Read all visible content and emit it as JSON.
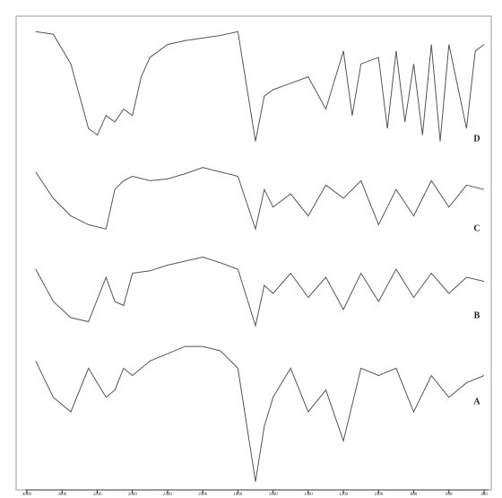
{
  "chart_data": {
    "type": "line",
    "xticks": [
      4000,
      3600,
      3200,
      2800,
      2400,
      2000,
      1800,
      1600,
      1400,
      1200,
      1000,
      800,
      600,
      400
    ],
    "xlim": [
      4000,
      400
    ],
    "ylim": [
      0,
      100
    ],
    "series": [
      {
        "name": "D",
        "color": "#555555",
        "x": [
          3900,
          3700,
          3500,
          3300,
          3200,
          3100,
          3000,
          2900,
          2800,
          2700,
          2600,
          2400,
          2200,
          2000,
          1900,
          1800,
          1700,
          1650,
          1600,
          1500,
          1400,
          1300,
          1200,
          1150,
          1100,
          1000,
          950,
          900,
          850,
          800,
          750,
          700,
          650,
          600,
          500,
          450,
          400
        ],
        "values": [
          95,
          93,
          70,
          20,
          15,
          30,
          25,
          35,
          30,
          60,
          75,
          85,
          88,
          90,
          92,
          95,
          10,
          45,
          50,
          55,
          60,
          35,
          80,
          30,
          70,
          75,
          20,
          80,
          25,
          70,
          15,
          85,
          10,
          85,
          20,
          80,
          85
        ]
      },
      {
        "name": "C",
        "color": "#555555",
        "x": [
          3900,
          3700,
          3500,
          3300,
          3100,
          3000,
          2900,
          2800,
          2600,
          2400,
          2200,
          2000,
          1900,
          1800,
          1700,
          1650,
          1600,
          1500,
          1400,
          1300,
          1200,
          1100,
          1000,
          900,
          800,
          700,
          600,
          500,
          400
        ],
        "values": [
          80,
          50,
          30,
          20,
          15,
          60,
          70,
          75,
          70,
          72,
          78,
          85,
          80,
          75,
          15,
          60,
          40,
          55,
          30,
          65,
          50,
          70,
          20,
          60,
          30,
          70,
          40,
          65,
          60
        ]
      },
      {
        "name": "B",
        "color": "#555555",
        "x": [
          3900,
          3700,
          3500,
          3300,
          3100,
          3000,
          2900,
          2800,
          2600,
          2400,
          2200,
          2000,
          1900,
          1800,
          1700,
          1650,
          1600,
          1500,
          1400,
          1300,
          1200,
          1100,
          1000,
          900,
          800,
          700,
          600,
          500,
          400
        ],
        "values": [
          80,
          40,
          20,
          15,
          70,
          40,
          35,
          75,
          78,
          85,
          90,
          95,
          88,
          80,
          10,
          60,
          50,
          75,
          45,
          70,
          30,
          75,
          40,
          80,
          45,
          75,
          50,
          70,
          65
        ]
      },
      {
        "name": "A",
        "color": "#555555",
        "x": [
          3900,
          3700,
          3500,
          3300,
          3100,
          3000,
          2900,
          2800,
          2600,
          2400,
          2200,
          2000,
          1900,
          1800,
          1700,
          1650,
          1600,
          1500,
          1400,
          1300,
          1200,
          1100,
          1000,
          900,
          800,
          700,
          600,
          500,
          400
        ],
        "values": [
          85,
          60,
          50,
          80,
          60,
          65,
          80,
          75,
          85,
          90,
          95,
          95,
          92,
          80,
          2,
          40,
          60,
          80,
          50,
          65,
          30,
          80,
          75,
          80,
          50,
          75,
          60,
          70,
          75
        ]
      }
    ]
  }
}
